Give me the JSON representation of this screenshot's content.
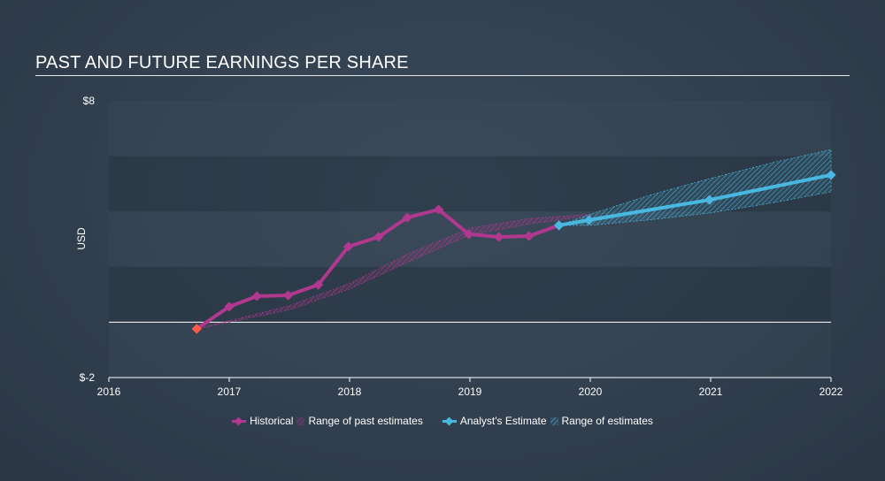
{
  "title": "PAST AND FUTURE EARNINGS PER SHARE",
  "colors": {
    "historical": "#b0388e",
    "estimate": "#49b8e0",
    "negative": "#ff5a4a"
  },
  "chart_data": {
    "type": "line",
    "title": "PAST AND FUTURE EARNINGS PER SHARE",
    "ylabel": "USD",
    "xlabel": "",
    "ylim": [
      -2,
      8
    ],
    "xlim": [
      2016,
      2022
    ],
    "y_tick_labels": [
      "$8",
      "$-2"
    ],
    "x_tick_labels": [
      "2016",
      "2017",
      "2018",
      "2019",
      "2020",
      "2021",
      "2022"
    ],
    "legend": [
      "Historical",
      "Range of past estimates",
      "Analyst's Estimate",
      "Range of estimates"
    ],
    "legend_position": "bottom",
    "series": [
      {
        "name": "Historical",
        "x": [
          2016.73,
          2017.0,
          2017.23,
          2017.49,
          2017.74,
          2017.99,
          2018.24,
          2018.48,
          2018.74,
          2018.99,
          2019.24,
          2019.49,
          2019.74
        ],
        "y": [
          -0.24,
          0.56,
          0.94,
          0.97,
          1.35,
          2.73,
          3.08,
          3.78,
          4.07,
          3.18,
          3.08,
          3.11,
          3.5
        ]
      },
      {
        "name": "Analyst's Estimate",
        "x": [
          2019.74,
          2019.99,
          2020.99,
          2022.0
        ],
        "y": [
          3.5,
          3.69,
          4.42,
          5.32
        ]
      }
    ],
    "ranges": [
      {
        "name": "Range of past estimates",
        "x": [
          2016.73,
          2017.0,
          2017.5,
          2018.0,
          2018.5,
          2019.0,
          2019.5,
          2020.0
        ],
        "upper": [
          -0.24,
          0.05,
          0.6,
          1.4,
          2.5,
          3.4,
          3.75,
          3.9
        ],
        "lower": [
          -0.24,
          0.0,
          0.45,
          1.2,
          2.2,
          3.15,
          3.55,
          3.85
        ]
      },
      {
        "name": "Range of estimates",
        "x": [
          2019.74,
          2020.0,
          2020.5,
          2021.0,
          2021.5,
          2022.0
        ],
        "upper": [
          3.5,
          3.9,
          4.6,
          5.2,
          5.75,
          6.24
        ],
        "lower": [
          3.5,
          3.5,
          3.7,
          3.95,
          4.3,
          4.71
        ]
      }
    ]
  }
}
